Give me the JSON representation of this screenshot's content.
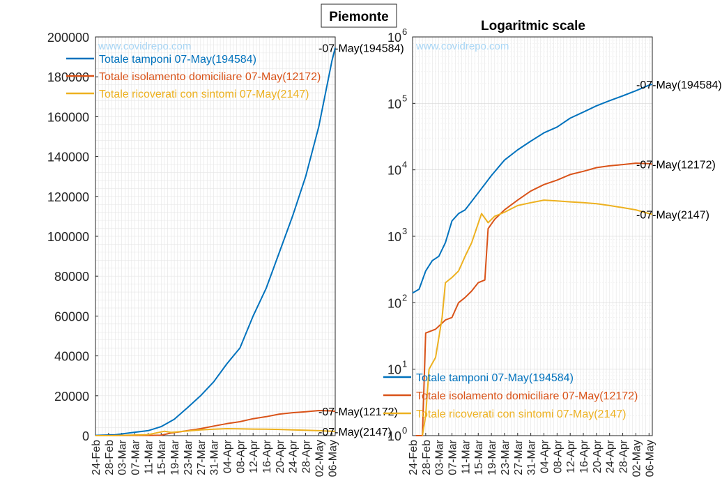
{
  "figure_title": "Piemonte",
  "watermark": "www.covidrepo.com",
  "colors": {
    "tamponi": "#0072bd",
    "isolamento": "#d95319",
    "ricoverati": "#edb120"
  },
  "chart_data": [
    {
      "type": "line",
      "title": "",
      "yscale": "linear",
      "ylim": [
        0,
        200000
      ],
      "yticks": [
        "0",
        "20000",
        "40000",
        "60000",
        "80000",
        "100000",
        "120000",
        "140000",
        "160000",
        "180000",
        "200000"
      ],
      "xlabel": "",
      "ylabel": "",
      "grid": true,
      "legend_position": "top-left",
      "x_start": "24-Feb",
      "x_end": "07-May",
      "x_tick_labels": [
        "24-Feb",
        "28-Feb",
        "03-Mar",
        "07-Mar",
        "11-Mar",
        "15-Mar",
        "19-Mar",
        "23-Mar",
        "27-Mar",
        "31-Mar",
        "04-Apr",
        "08-Apr",
        "12-Apr",
        "16-Apr",
        "20-Apr",
        "24-Apr",
        "28-Apr",
        "02-May",
        "06-May"
      ],
      "legend": [
        "Totale tamponi 07-May(194584)",
        "Totale isolamento domiciliare 07-May(12172)",
        "Totale ricoverati con sintomi 07-May(2147)"
      ],
      "end_labels": [
        "-07-May(194584)",
        "-07-May(12172)",
        "-07-May(2147)"
      ],
      "series": [
        {
          "name": "Totale tamponi",
          "points": [
            [
              "24-Feb",
              140
            ],
            [
              "01-Mar",
              430
            ],
            [
              "07-Mar",
              1700
            ],
            [
              "11-Mar",
              2500
            ],
            [
              "15-Mar",
              4500
            ],
            [
              "19-Mar",
              8200
            ],
            [
              "23-Mar",
              14000
            ],
            [
              "27-Mar",
              20000
            ],
            [
              "31-Mar",
              27000
            ],
            [
              "04-Apr",
              36000
            ],
            [
              "08-Apr",
              44000
            ],
            [
              "12-Apr",
              60000
            ],
            [
              "16-Apr",
              74000
            ],
            [
              "20-Apr",
              92000
            ],
            [
              "24-Apr",
              110000
            ],
            [
              "28-Apr",
              130000
            ],
            [
              "02-May",
              155000
            ],
            [
              "06-May",
              188000
            ],
            [
              "07-May",
              194584
            ]
          ]
        },
        {
          "name": "Totale isolamento domiciliare",
          "points": [
            [
              "24-Feb",
              0
            ],
            [
              "28-Feb",
              35
            ],
            [
              "07-Mar",
              60
            ],
            [
              "11-Mar",
              120
            ],
            [
              "15-Mar",
              200
            ],
            [
              "18-Mar",
              1300
            ],
            [
              "23-Mar",
              2500
            ],
            [
              "27-Mar",
              3500
            ],
            [
              "31-Mar",
              4800
            ],
            [
              "04-Apr",
              6000
            ],
            [
              "08-Apr",
              7000
            ],
            [
              "12-Apr",
              8500
            ],
            [
              "16-Apr",
              9500
            ],
            [
              "20-Apr",
              10800
            ],
            [
              "24-Apr",
              11500
            ],
            [
              "28-Apr",
              12000
            ],
            [
              "02-May",
              12600
            ],
            [
              "06-May",
              12400
            ],
            [
              "07-May",
              12172
            ]
          ]
        },
        {
          "name": "Totale ricoverati con sintomi",
          "points": [
            [
              "24-Feb",
              0
            ],
            [
              "29-Feb",
              10
            ],
            [
              "05-Mar",
              200
            ],
            [
              "11-Mar",
              500
            ],
            [
              "16-Mar",
              2200
            ],
            [
              "18-Mar",
              1600
            ],
            [
              "23-Mar",
              2300
            ],
            [
              "27-Mar",
              2900
            ],
            [
              "31-Mar",
              3200
            ],
            [
              "04-Apr",
              3500
            ],
            [
              "08-Apr",
              3400
            ],
            [
              "12-Apr",
              3300
            ],
            [
              "16-Apr",
              3200
            ],
            [
              "20-Apr",
              3100
            ],
            [
              "24-Apr",
              2900
            ],
            [
              "28-Apr",
              2700
            ],
            [
              "02-May",
              2500
            ],
            [
              "06-May",
              2200
            ],
            [
              "07-May",
              2147
            ]
          ]
        }
      ]
    },
    {
      "type": "line",
      "title": "Logaritmic scale",
      "yscale": "log",
      "ylim": [
        1,
        1000000
      ],
      "yticks": [
        "10^0",
        "10^1",
        "10^2",
        "10^3",
        "10^4",
        "10^5",
        "10^6"
      ],
      "xlabel": "",
      "ylabel": "",
      "grid": true,
      "legend_position": "bottom-left",
      "x_start": "24-Feb",
      "x_end": "07-May",
      "x_tick_labels": [
        "24-Feb",
        "28-Feb",
        "03-Mar",
        "07-Mar",
        "11-Mar",
        "15-Mar",
        "19-Mar",
        "23-Mar",
        "27-Mar",
        "31-Mar",
        "04-Apr",
        "08-Apr",
        "12-Apr",
        "16-Apr",
        "20-Apr",
        "24-Apr",
        "28-Apr",
        "02-May",
        "06-May"
      ],
      "legend": [
        "Totale tamponi 07-May(194584)",
        "Totale isolamento domiciliare 07-May(12172)",
        "Totale ricoverati con sintomi 07-May(2147)"
      ],
      "end_labels": [
        "-07-May(194584)",
        "-07-May(12172)",
        "-07-May(2147)"
      ],
      "series": [
        {
          "name": "Totale tamponi",
          "points": [
            [
              "24-Feb",
              140
            ],
            [
              "26-Feb",
              160
            ],
            [
              "28-Feb",
              300
            ],
            [
              "01-Mar",
              430
            ],
            [
              "03-Mar",
              500
            ],
            [
              "05-Mar",
              800
            ],
            [
              "07-Mar",
              1700
            ],
            [
              "09-Mar",
              2200
            ],
            [
              "11-Mar",
              2500
            ],
            [
              "15-Mar",
              4500
            ],
            [
              "19-Mar",
              8200
            ],
            [
              "23-Mar",
              14000
            ],
            [
              "27-Mar",
              20000
            ],
            [
              "31-Mar",
              27000
            ],
            [
              "04-Apr",
              36000
            ],
            [
              "08-Apr",
              44000
            ],
            [
              "12-Apr",
              60000
            ],
            [
              "16-Apr",
              74000
            ],
            [
              "20-Apr",
              92000
            ],
            [
              "24-Apr",
              110000
            ],
            [
              "28-Apr",
              130000
            ],
            [
              "02-May",
              155000
            ],
            [
              "06-May",
              188000
            ],
            [
              "07-May",
              194584
            ]
          ]
        },
        {
          "name": "Totale isolamento domiciliare",
          "points": [
            [
              "25-Feb",
              1
            ],
            [
              "27-Feb",
              1
            ],
            [
              "28-Feb",
              35
            ],
            [
              "02-Mar",
              40
            ],
            [
              "05-Mar",
              55
            ],
            [
              "07-Mar",
              60
            ],
            [
              "09-Mar",
              100
            ],
            [
              "11-Mar",
              120
            ],
            [
              "13-Mar",
              150
            ],
            [
              "15-Mar",
              200
            ],
            [
              "17-Mar",
              220
            ],
            [
              "18-Mar",
              1300
            ],
            [
              "20-Mar",
              1800
            ],
            [
              "23-Mar",
              2500
            ],
            [
              "27-Mar",
              3500
            ],
            [
              "31-Mar",
              4800
            ],
            [
              "04-Apr",
              6000
            ],
            [
              "08-Apr",
              7000
            ],
            [
              "12-Apr",
              8500
            ],
            [
              "16-Apr",
              9500
            ],
            [
              "20-Apr",
              10800
            ],
            [
              "24-Apr",
              11500
            ],
            [
              "28-Apr",
              12000
            ],
            [
              "02-May",
              12600
            ],
            [
              "06-May",
              12400
            ],
            [
              "07-May",
              12172
            ]
          ]
        },
        {
          "name": "Totale ricoverati con sintomi",
          "points": [
            [
              "27-Feb",
              1
            ],
            [
              "28-Feb",
              2
            ],
            [
              "29-Feb",
              10
            ],
            [
              "02-Mar",
              15
            ],
            [
              "04-Mar",
              60
            ],
            [
              "05-Mar",
              200
            ],
            [
              "07-Mar",
              240
            ],
            [
              "09-Mar",
              300
            ],
            [
              "11-Mar",
              500
            ],
            [
              "13-Mar",
              800
            ],
            [
              "16-Mar",
              2200
            ],
            [
              "18-Mar",
              1600
            ],
            [
              "20-Mar",
              2000
            ],
            [
              "23-Mar",
              2300
            ],
            [
              "27-Mar",
              2900
            ],
            [
              "31-Mar",
              3200
            ],
            [
              "04-Apr",
              3500
            ],
            [
              "08-Apr",
              3400
            ],
            [
              "12-Apr",
              3300
            ],
            [
              "16-Apr",
              3200
            ],
            [
              "20-Apr",
              3100
            ],
            [
              "24-Apr",
              2900
            ],
            [
              "28-Apr",
              2700
            ],
            [
              "02-May",
              2500
            ],
            [
              "06-May",
              2200
            ],
            [
              "07-May",
              2147
            ]
          ]
        }
      ]
    }
  ]
}
